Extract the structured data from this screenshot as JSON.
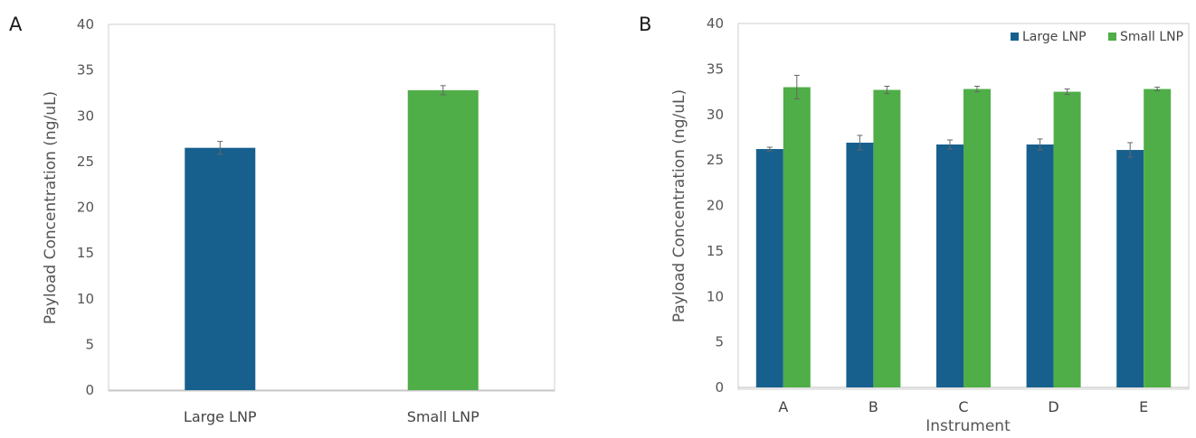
{
  "chart_data": [
    {
      "panel": "A",
      "type": "bar",
      "categories": [
        "Large LNP",
        "Small LNP"
      ],
      "values": [
        26.5,
        32.8
      ],
      "errors": [
        0.7,
        0.5
      ],
      "colors": [
        "#17608e",
        "#4fae47"
      ],
      "ylabel": "Payload Concentration (ng/uL)",
      "xlabel": "",
      "ylim": [
        0,
        40
      ],
      "yticks": [
        0,
        5,
        10,
        15,
        20,
        25,
        30,
        35,
        40
      ],
      "grid": false,
      "legend": "none"
    },
    {
      "panel": "B",
      "type": "bar",
      "categories": [
        "A",
        "B",
        "C",
        "D",
        "E"
      ],
      "series": [
        {
          "name": "Large LNP",
          "color": "#17608e",
          "values": [
            26.2,
            26.9,
            26.7,
            26.7,
            26.1
          ],
          "errors": [
            0.2,
            0.8,
            0.5,
            0.6,
            0.8
          ]
        },
        {
          "name": "Small LNP",
          "color": "#4fae47",
          "values": [
            33.0,
            32.7,
            32.8,
            32.5,
            32.8
          ],
          "errors": [
            1.3,
            0.4,
            0.3,
            0.3,
            0.2
          ]
        }
      ],
      "ylabel": "Payload Concentration (ng/uL)",
      "xlabel": "Instrument",
      "ylim": [
        0,
        40
      ],
      "yticks": [
        0,
        5,
        10,
        15,
        20,
        25,
        30,
        35,
        40
      ],
      "grid": false,
      "legend": "top-right"
    }
  ]
}
